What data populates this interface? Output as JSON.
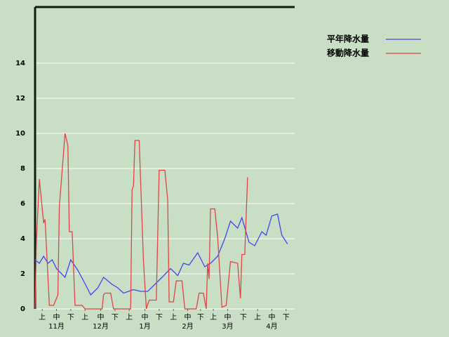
{
  "chart_data": {
    "type": "line",
    "xlim": [
      0,
      182
    ],
    "xticks": [
      {
        "value": 5,
        "label": "上"
      },
      {
        "value": 15,
        "label": "中"
      },
      {
        "value": 25,
        "label": "下"
      },
      {
        "value": 35,
        "label": "上"
      },
      {
        "value": 46,
        "label": "中"
      },
      {
        "value": 56,
        "label": "下"
      },
      {
        "value": 66,
        "label": "上"
      },
      {
        "value": 77,
        "label": "中"
      },
      {
        "value": 87,
        "label": "下"
      },
      {
        "value": 97,
        "label": "上"
      },
      {
        "value": 107,
        "label": "中"
      },
      {
        "value": 116,
        "label": "下"
      },
      {
        "value": 125,
        "label": "上"
      },
      {
        "value": 135,
        "label": "中"
      },
      {
        "value": 146,
        "label": "下"
      },
      {
        "value": 156,
        "label": "上"
      },
      {
        "value": 166,
        "label": "中"
      },
      {
        "value": 176,
        "label": "下"
      }
    ],
    "month_labels": [
      {
        "value": 15,
        "label": "11月"
      },
      {
        "value": 46,
        "label": "12月"
      },
      {
        "value": 77,
        "label": "1月"
      },
      {
        "value": 107,
        "label": "2月"
      },
      {
        "value": 135,
        "label": "3月"
      },
      {
        "value": 166,
        "label": "4月"
      }
    ],
    "ylim": [
      0,
      17.2
    ],
    "yticks": [
      0,
      2,
      4,
      6,
      8,
      10,
      12,
      14
    ],
    "grid": true,
    "legend": "right",
    "series": [
      {
        "name": "平年降水量",
        "color": "#4444ee",
        "x": [
          0,
          3,
          6,
          9,
          12,
          15,
          21,
          25,
          30,
          34,
          39,
          44,
          48,
          54,
          58,
          62,
          69,
          74,
          79,
          84,
          89,
          95,
          100,
          104,
          108,
          114,
          119,
          123,
          128,
          133,
          137,
          142,
          145,
          150,
          154,
          159,
          162,
          166,
          170,
          173,
          177
        ],
        "values": [
          2.8,
          2.6,
          3.0,
          2.6,
          2.8,
          2.3,
          1.8,
          2.8,
          2.2,
          1.6,
          0.8,
          1.2,
          1.8,
          1.4,
          1.2,
          0.9,
          1.1,
          1.0,
          1.0,
          1.4,
          1.8,
          2.3,
          1.9,
          2.6,
          2.5,
          3.2,
          2.4,
          2.6,
          3.0,
          4.0,
          5.0,
          4.6,
          5.2,
          3.8,
          3.6,
          4.4,
          4.2,
          5.3,
          5.4,
          4.2,
          3.7
        ]
      },
      {
        "name": "移動降水量",
        "color": "#e04444",
        "x": [
          0,
          1,
          3,
          6,
          7,
          10,
          13,
          16,
          17,
          21,
          23,
          24,
          26,
          28,
          33,
          35,
          47,
          48,
          49,
          53,
          55,
          57,
          67,
          68,
          69,
          70,
          73,
          76,
          78,
          80,
          85,
          87,
          91,
          93,
          94,
          97,
          99,
          103,
          105,
          113,
          115,
          118,
          120,
          121,
          122,
          123,
          126,
          128,
          131,
          134,
          137,
          142,
          144,
          145,
          147,
          149
        ],
        "values": [
          0,
          4,
          7.4,
          4.9,
          5.1,
          0.2,
          0.2,
          0.8,
          5.8,
          10,
          9.3,
          4.4,
          4.4,
          0.2,
          0.2,
          0,
          0,
          0.8,
          0.9,
          0.9,
          0,
          0,
          0,
          6.8,
          7,
          9.6,
          9.6,
          2.7,
          0,
          0.5,
          0.5,
          7.9,
          7.9,
          6.2,
          0.4,
          0.4,
          1.6,
          1.6,
          0,
          0,
          0.9,
          0.9,
          0,
          2.6,
          1.7,
          5.7,
          5.7,
          4.1,
          0.1,
          0.2,
          2.7,
          2.6,
          0.6,
          3.1,
          3.1,
          7.5
        ]
      }
    ]
  }
}
